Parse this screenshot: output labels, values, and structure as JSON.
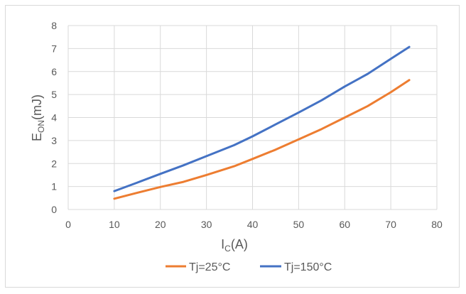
{
  "chart_data": {
    "type": "line",
    "title": "",
    "xlabel_main": "I",
    "xlabel_sub": "C",
    "xlabel_tail": "(A)",
    "ylabel_main": "E",
    "ylabel_sub": "ON",
    "ylabel_tail": "(mJ)",
    "xlim": [
      0,
      80
    ],
    "ylim": [
      0,
      8
    ],
    "xticks": [
      0,
      10,
      20,
      30,
      40,
      50,
      60,
      70,
      80
    ],
    "yticks": [
      0,
      1,
      2,
      3,
      4,
      5,
      6,
      7,
      8
    ],
    "grid": true,
    "legend_position": "bottom",
    "series": [
      {
        "name": "Tj=25°C",
        "color": "#ED7D31",
        "x": [
          10,
          15,
          20,
          25,
          30,
          36,
          40,
          45,
          50,
          55,
          60,
          65,
          70,
          74
        ],
        "y": [
          0.47,
          0.73,
          0.98,
          1.2,
          1.5,
          1.88,
          2.2,
          2.6,
          3.05,
          3.5,
          4.0,
          4.5,
          5.1,
          5.63
        ]
      },
      {
        "name": "Tj=150°C",
        "color": "#4472C4",
        "x": [
          10,
          15,
          20,
          25,
          30,
          36,
          40,
          45,
          50,
          55,
          60,
          65,
          70,
          74
        ],
        "y": [
          0.8,
          1.17,
          1.55,
          1.92,
          2.32,
          2.8,
          3.18,
          3.7,
          4.22,
          4.75,
          5.35,
          5.9,
          6.55,
          7.07
        ]
      }
    ]
  }
}
